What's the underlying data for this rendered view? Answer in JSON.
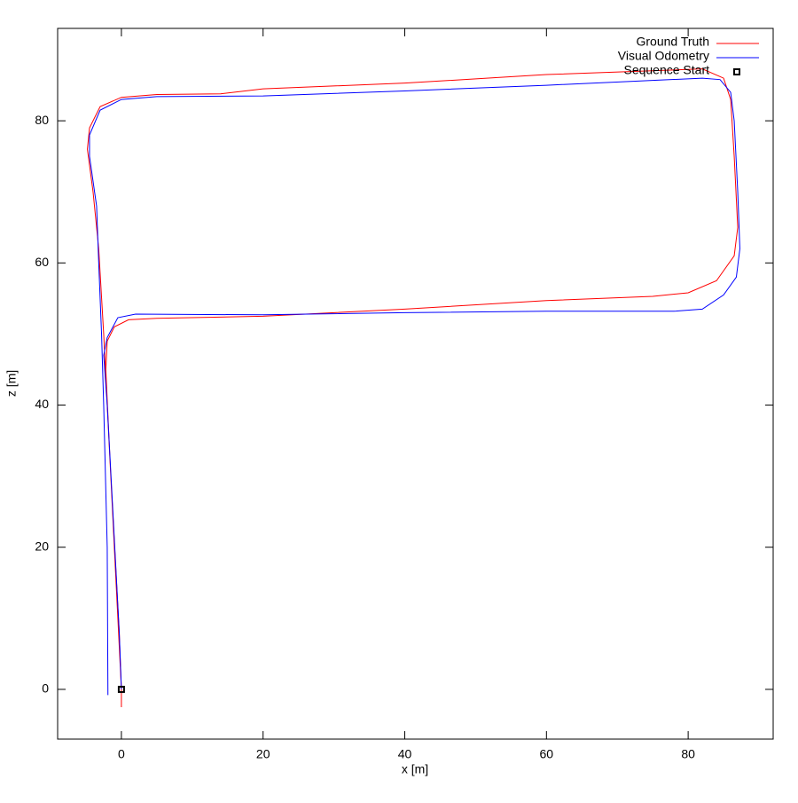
{
  "chart_data": {
    "type": "line",
    "xlabel": "x [m]",
    "ylabel": "z [m]",
    "xlim": [
      -9,
      92
    ],
    "ylim": [
      -7,
      93
    ],
    "xticks": [
      0,
      20,
      40,
      60,
      80
    ],
    "yticks": [
      0,
      20,
      40,
      60,
      80
    ],
    "grid": false,
    "legend": "top-right",
    "series": [
      {
        "name": "Ground Truth",
        "color": "#ff0000",
        "marker": "none",
        "x": [
          0,
          0,
          -0.3,
          -1.5,
          -2.2,
          -2,
          -1,
          1,
          5,
          20,
          40,
          60,
          75,
          80,
          84,
          86.5,
          87,
          86.5,
          86,
          85,
          82,
          60,
          40,
          20,
          14,
          5,
          0,
          -3,
          -4.5,
          -4.8,
          -4,
          -3.2,
          -2.5,
          -1.5,
          -0.5,
          0
        ],
        "values": [
          -2.5,
          0,
          8,
          30,
          45,
          49,
          51,
          52,
          52.2,
          52.5,
          53.5,
          54.7,
          55.3,
          55.8,
          57.5,
          61,
          65,
          75,
          83,
          86,
          87.3,
          86.5,
          85.3,
          84.5,
          83.8,
          83.7,
          83.3,
          82,
          79,
          76,
          70,
          62,
          50,
          30,
          10,
          0
        ]
      },
      {
        "name": "Visual Odometry",
        "color": "#0000ff",
        "marker": "none",
        "x": [
          0,
          -0.3,
          -1.2,
          -2,
          -2.5,
          -2,
          -0.5,
          2,
          20,
          40,
          60,
          78,
          82,
          85,
          86.8,
          87.3,
          87,
          86.5,
          86,
          84.5,
          82,
          60,
          40,
          20,
          5,
          0,
          -3,
          -4.5,
          -4.5,
          -3.5,
          -3.2,
          -2.8,
          -2.5,
          -2,
          -1.9
        ],
        "values": [
          0,
          8,
          25,
          40,
          47,
          49.5,
          52.3,
          52.8,
          52.7,
          53,
          53.2,
          53.2,
          53.5,
          55.5,
          58,
          62,
          70,
          80,
          84,
          85.8,
          86,
          85,
          84.2,
          83.5,
          83.4,
          83,
          81.5,
          78,
          75,
          68,
          60,
          50,
          40,
          20,
          -0.8
        ]
      },
      {
        "name": "Sequence Start",
        "color": "#000000",
        "marker": "square",
        "x": [
          0
        ],
        "values": [
          0
        ]
      }
    ]
  }
}
